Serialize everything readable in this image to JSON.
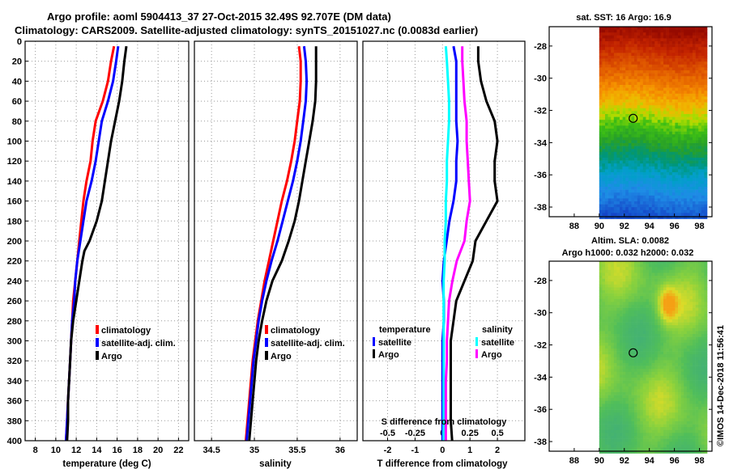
{
  "title_line1": "Argo profile: aoml 5904413_37 27-Oct-2015 32.49S 92.707E (DM data)",
  "title_line2": "Climatology: CARS2009. Satellite-adjusted climatology: synTS_20151027.nc (0.0083d earlier)",
  "watermark": "©IMOS 14-Dec-2018 11:56:41",
  "colors": {
    "climatology": "#ff0000",
    "satellite": "#0000ff",
    "argo": "#000000",
    "s_satellite": "#00ffff",
    "s_argo": "#ff00ff",
    "marker": "#000000"
  },
  "chart_data": [
    {
      "type": "line",
      "id": "temperature",
      "xlabel": "temperature (deg C)",
      "ylabel": "",
      "xlim": [
        7,
        23
      ],
      "ylim": [
        400,
        0
      ],
      "xticks": [
        "8",
        "10",
        "12",
        "14",
        "16",
        "18",
        "20",
        "22"
      ],
      "xtick_values": [
        8,
        10,
        12,
        14,
        16,
        18,
        20,
        22
      ],
      "yticks": [
        "0",
        "20",
        "40",
        "60",
        "80",
        "100",
        "120",
        "140",
        "160",
        "180",
        "200",
        "220",
        "240",
        "260",
        "280",
        "300",
        "320",
        "340",
        "360",
        "380",
        "400"
      ],
      "ytick_values": [
        0,
        20,
        40,
        60,
        80,
        100,
        120,
        140,
        160,
        180,
        200,
        220,
        240,
        260,
        280,
        300,
        320,
        340,
        360,
        380,
        400
      ],
      "legend": [
        "climatology",
        "satellite-adj. clim.",
        "Argo"
      ],
      "series": [
        {
          "name": "climatology",
          "color": "#ff0000",
          "depth": [
            5,
            20,
            40,
            60,
            80,
            100,
            120,
            140,
            160,
            180,
            200,
            220,
            240,
            260,
            280,
            300,
            320,
            340,
            360,
            380,
            400
          ],
          "values": [
            15.7,
            15.4,
            15.1,
            14.6,
            13.9,
            13.6,
            13.4,
            13.0,
            12.7,
            12.5,
            12.3,
            12.1,
            11.9,
            11.7,
            11.6,
            11.5,
            11.4,
            11.3,
            11.2,
            11.1,
            11.0
          ]
        },
        {
          "name": "satellite-adj. clim.",
          "color": "#0000ff",
          "depth": [
            5,
            20,
            40,
            60,
            80,
            100,
            120,
            140,
            160,
            180,
            200,
            220,
            240,
            260,
            280,
            300,
            320,
            340,
            360,
            380,
            400
          ],
          "values": [
            16.1,
            15.9,
            15.6,
            15.1,
            14.5,
            14.2,
            13.9,
            13.5,
            13.0,
            12.7,
            12.4,
            12.1,
            11.9,
            11.8,
            11.6,
            11.5,
            11.4,
            11.3,
            11.2,
            11.1,
            11.0
          ]
        },
        {
          "name": "Argo",
          "color": "#000000",
          "depth": [
            5,
            20,
            40,
            60,
            80,
            100,
            120,
            140,
            160,
            180,
            200,
            210,
            220,
            240,
            260,
            280,
            300,
            320,
            340,
            360,
            380,
            400
          ],
          "values": [
            16.9,
            16.7,
            16.5,
            16.2,
            15.8,
            15.4,
            15.1,
            14.8,
            14.5,
            14.0,
            13.3,
            12.8,
            12.6,
            12.3,
            12.0,
            11.7,
            11.5,
            11.4,
            11.3,
            11.2,
            11.2,
            11.1
          ]
        }
      ]
    },
    {
      "type": "line",
      "id": "salinity",
      "xlabel": "salinity",
      "xlim": [
        34.3,
        36.2
      ],
      "ylim": [
        400,
        0
      ],
      "xticks": [
        "34.5",
        "35",
        "35.5",
        "36"
      ],
      "xtick_values": [
        34.5,
        35,
        35.5,
        36
      ],
      "legend": [
        "climatology",
        "satellite-adj. clim.",
        "Argo"
      ],
      "series": [
        {
          "name": "climatology",
          "color": "#ff0000",
          "depth": [
            5,
            20,
            40,
            60,
            80,
            100,
            120,
            140,
            160,
            180,
            200,
            220,
            240,
            260,
            280,
            300,
            320,
            340,
            360,
            380,
            400
          ],
          "values": [
            35.52,
            35.54,
            35.54,
            35.53,
            35.5,
            35.47,
            35.43,
            35.38,
            35.32,
            35.27,
            35.22,
            35.17,
            35.12,
            35.08,
            35.04,
            35.01,
            34.98,
            34.96,
            34.94,
            34.92,
            34.9
          ]
        },
        {
          "name": "satellite-adj. clim.",
          "color": "#0000ff",
          "depth": [
            5,
            20,
            40,
            60,
            80,
            100,
            120,
            140,
            160,
            180,
            200,
            220,
            240,
            260,
            280,
            300,
            320,
            340,
            360,
            380,
            400
          ],
          "values": [
            35.58,
            35.6,
            35.61,
            35.6,
            35.57,
            35.54,
            35.5,
            35.45,
            35.39,
            35.33,
            35.27,
            35.2,
            35.14,
            35.09,
            35.05,
            35.02,
            34.99,
            34.97,
            34.95,
            34.93,
            34.91
          ]
        },
        {
          "name": "Argo",
          "color": "#000000",
          "depth": [
            5,
            20,
            40,
            60,
            80,
            100,
            120,
            140,
            160,
            180,
            200,
            220,
            240,
            260,
            280,
            300,
            320,
            340,
            360,
            380,
            400
          ],
          "values": [
            35.72,
            35.72,
            35.72,
            35.71,
            35.68,
            35.64,
            35.6,
            35.56,
            35.52,
            35.47,
            35.4,
            35.32,
            35.21,
            35.14,
            35.09,
            35.05,
            35.02,
            35.0,
            34.98,
            34.96,
            34.94
          ]
        }
      ]
    },
    {
      "type": "line",
      "id": "differences",
      "xlabel": "T difference from climatology",
      "xlabel_top": "S difference from climatology",
      "xlim": [
        -2.9,
        3.0
      ],
      "ylim": [
        400,
        0
      ],
      "xticks": [
        "-2",
        "-1",
        "0",
        "1",
        "2"
      ],
      "xtick_values": [
        -2,
        -1,
        0,
        1,
        2
      ],
      "s_xticks": [
        "-0.5",
        "-0.25",
        "0",
        "0.25",
        "0.5"
      ],
      "legend_temperature_title": "temperature",
      "legend_temperature": [
        "satellite",
        "Argo"
      ],
      "legend_salinity_title": "salinity",
      "legend_salinity": [
        "satellite",
        "Argo"
      ],
      "series": [
        {
          "name": "T satellite",
          "color": "#0000ff",
          "depth": [
            5,
            20,
            40,
            60,
            80,
            100,
            120,
            140,
            160,
            180,
            200,
            220,
            240,
            260,
            280,
            300,
            320,
            340,
            360,
            380,
            400
          ],
          "values": [
            0.4,
            0.5,
            0.5,
            0.5,
            0.5,
            0.55,
            0.5,
            0.5,
            0.4,
            0.25,
            0.15,
            0.05,
            0.0,
            0.05,
            0.05,
            0.0,
            0.0,
            0.0,
            0.0,
            0.0,
            0.0
          ]
        },
        {
          "name": "T Argo",
          "color": "#000000",
          "depth": [
            5,
            20,
            40,
            60,
            80,
            100,
            120,
            140,
            160,
            180,
            200,
            220,
            240,
            260,
            280,
            300,
            320,
            340,
            360,
            380,
            400
          ],
          "values": [
            1.3,
            1.3,
            1.4,
            1.6,
            1.9,
            2.0,
            1.9,
            1.9,
            2.0,
            1.6,
            1.2,
            1.1,
            0.8,
            0.5,
            0.4,
            0.3,
            0.3,
            0.3,
            0.3,
            0.3,
            0.35
          ]
        },
        {
          "name": "S satellite",
          "color": "#00ffff",
          "depth": [
            5,
            20,
            40,
            60,
            80,
            100,
            120,
            140,
            160,
            180,
            200,
            220,
            240,
            260,
            280,
            300,
            320,
            340,
            360,
            380,
            400
          ],
          "values": [
            0.03,
            0.04,
            0.05,
            0.06,
            0.06,
            0.05,
            0.04,
            0.04,
            0.03,
            0.03,
            0.02,
            0.02,
            0.01,
            0.01,
            0.01,
            0.01,
            0.01,
            0.01,
            0.01,
            0.01,
            0.01
          ]
        },
        {
          "name": "S Argo",
          "color": "#ff00ff",
          "depth": [
            5,
            20,
            40,
            60,
            80,
            100,
            120,
            140,
            160,
            180,
            200,
            220,
            240,
            260,
            280,
            300,
            320,
            340,
            360,
            380,
            400
          ],
          "values": [
            0.18,
            0.18,
            0.19,
            0.2,
            0.22,
            0.22,
            0.23,
            0.24,
            0.25,
            0.22,
            0.2,
            0.13,
            0.09,
            0.06,
            0.05,
            0.04,
            0.04,
            0.03,
            0.03,
            0.03,
            0.03
          ]
        }
      ]
    },
    {
      "type": "heatmap",
      "id": "sst-map",
      "title": "sat. SST: 16 Argo: 16.9",
      "xlim": [
        86,
        99
      ],
      "ylim": [
        -38.6,
        -26.8
      ],
      "xticks": [
        "88",
        "90",
        "92",
        "94",
        "96",
        "98"
      ],
      "xtick_values": [
        88,
        90,
        92,
        94,
        96,
        98
      ],
      "yticks": [
        "-28",
        "-30",
        "-32",
        "-34",
        "-36",
        "-38"
      ],
      "ytick_values": [
        -28,
        -30,
        -32,
        -34,
        -36,
        -38
      ],
      "data_xlim": [
        90,
        98.5
      ],
      "marker": {
        "lon": 92.707,
        "lat": -32.49
      }
    },
    {
      "type": "heatmap",
      "id": "sla-map",
      "title": "Altim. SLA: 0.0082",
      "subtitle": "Argo h1000: 0.032 h2000: 0.032",
      "xlim": [
        86,
        99
      ],
      "ylim": [
        -38.6,
        -26.8
      ],
      "xticks": [
        "88",
        "90",
        "92",
        "94",
        "96",
        "98"
      ],
      "xtick_values": [
        88,
        90,
        92,
        94,
        96,
        98
      ],
      "yticks": [
        "-28",
        "-30",
        "-32",
        "-34",
        "-36",
        "-38"
      ],
      "ytick_values": [
        -28,
        -30,
        -32,
        -34,
        -36,
        -38
      ],
      "data_xlim": [
        90,
        98.5
      ],
      "marker": {
        "lon": 92.707,
        "lat": -32.49
      }
    }
  ]
}
